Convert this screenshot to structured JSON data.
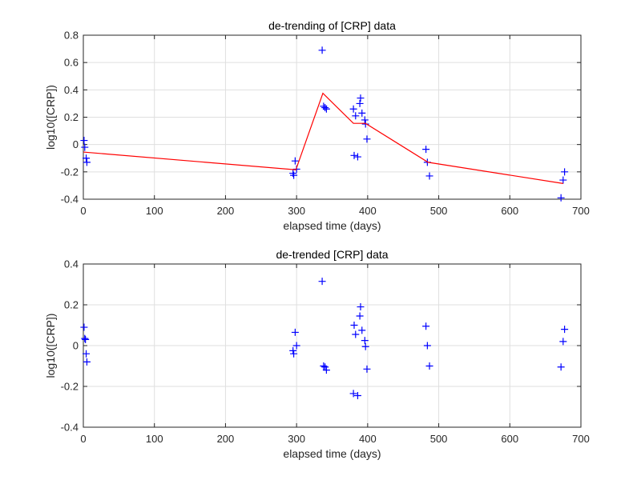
{
  "chart_data": [
    {
      "type": "line",
      "title": "de-trending of [CRP] data",
      "xlabel": "elapsed time (days)",
      "ylabel": "log10([CRP])",
      "xlim": [
        0,
        700
      ],
      "ylim": [
        -0.4,
        0.8
      ],
      "xticks": [
        "0",
        "100",
        "200",
        "300",
        "400",
        "500",
        "600",
        "700"
      ],
      "yticks": [
        "-0.4",
        "-0.2",
        "0",
        "0.2",
        "0.4",
        "0.6",
        "0.8"
      ],
      "grid": true,
      "series": [
        {
          "marker": "+",
          "color": "#0000ff",
          "points": [
            {
              "x": 1,
              "y": 0.03
            },
            {
              "x": 2,
              "y": -0.02
            },
            {
              "x": 4,
              "y": -0.1
            },
            {
              "x": 5,
              "y": -0.13
            },
            {
              "x": 295,
              "y": -0.21
            },
            {
              "x": 296,
              "y": -0.225
            },
            {
              "x": 298,
              "y": -0.12
            },
            {
              "x": 300,
              "y": -0.18
            },
            {
              "x": 336,
              "y": 0.69
            },
            {
              "x": 338,
              "y": 0.28
            },
            {
              "x": 340,
              "y": 0.27
            },
            {
              "x": 342,
              "y": 0.26
            },
            {
              "x": 380,
              "y": 0.26
            },
            {
              "x": 381,
              "y": -0.08
            },
            {
              "x": 383,
              "y": 0.21
            },
            {
              "x": 386,
              "y": -0.09
            },
            {
              "x": 389,
              "y": 0.3
            },
            {
              "x": 390,
              "y": 0.34
            },
            {
              "x": 392,
              "y": 0.23
            },
            {
              "x": 396,
              "y": 0.18
            },
            {
              "x": 397,
              "y": 0.15
            },
            {
              "x": 399,
              "y": 0.04
            },
            {
              "x": 482,
              "y": -0.035
            },
            {
              "x": 484,
              "y": -0.13
            },
            {
              "x": 487,
              "y": -0.23
            },
            {
              "x": 672,
              "y": -0.39
            },
            {
              "x": 675,
              "y": -0.26
            },
            {
              "x": 677,
              "y": -0.2
            }
          ]
        },
        {
          "color": "#ff0000",
          "points": [
            {
              "x": 0,
              "y": -0.055
            },
            {
              "x": 299,
              "y": -0.185
            },
            {
              "x": 337,
              "y": 0.375
            },
            {
              "x": 380,
              "y": 0.155
            },
            {
              "x": 397,
              "y": 0.155
            },
            {
              "x": 485,
              "y": -0.13
            },
            {
              "x": 675,
              "y": -0.285
            }
          ]
        }
      ]
    },
    {
      "type": "scatter",
      "title": "de-trended [CRP] data",
      "xlabel": "elapsed time (days)",
      "ylabel": "log10([CRP])",
      "xlim": [
        0,
        700
      ],
      "ylim": [
        -0.4,
        0.4
      ],
      "xticks": [
        "0",
        "100",
        "200",
        "300",
        "400",
        "500",
        "600",
        "700"
      ],
      "yticks": [
        "-0.4",
        "-0.2",
        "0",
        "0.2",
        "0.4"
      ],
      "grid": true,
      "series": [
        {
          "marker": "+",
          "color": "#0000ff",
          "points": [
            {
              "x": 1,
              "y": 0.09
            },
            {
              "x": 2,
              "y": 0.035
            },
            {
              "x": 3,
              "y": 0.03
            },
            {
              "x": 4,
              "y": -0.04
            },
            {
              "x": 5,
              "y": -0.08
            },
            {
              "x": 295,
              "y": -0.025
            },
            {
              "x": 296,
              "y": -0.04
            },
            {
              "x": 298,
              "y": 0.065
            },
            {
              "x": 300,
              "y": 0.0
            },
            {
              "x": 336,
              "y": 0.315
            },
            {
              "x": 338,
              "y": -0.1
            },
            {
              "x": 340,
              "y": -0.105
            },
            {
              "x": 342,
              "y": -0.12
            },
            {
              "x": 380,
              "y": -0.235
            },
            {
              "x": 381,
              "y": 0.1
            },
            {
              "x": 383,
              "y": 0.055
            },
            {
              "x": 386,
              "y": -0.245
            },
            {
              "x": 389,
              "y": 0.145
            },
            {
              "x": 390,
              "y": 0.19
            },
            {
              "x": 392,
              "y": 0.075
            },
            {
              "x": 396,
              "y": 0.025
            },
            {
              "x": 397,
              "y": -0.005
            },
            {
              "x": 399,
              "y": -0.115
            },
            {
              "x": 482,
              "y": 0.095
            },
            {
              "x": 484,
              "y": 0.0
            },
            {
              "x": 487,
              "y": -0.1
            },
            {
              "x": 672,
              "y": -0.105
            },
            {
              "x": 675,
              "y": 0.02
            },
            {
              "x": 677,
              "y": 0.08
            }
          ]
        }
      ]
    }
  ]
}
